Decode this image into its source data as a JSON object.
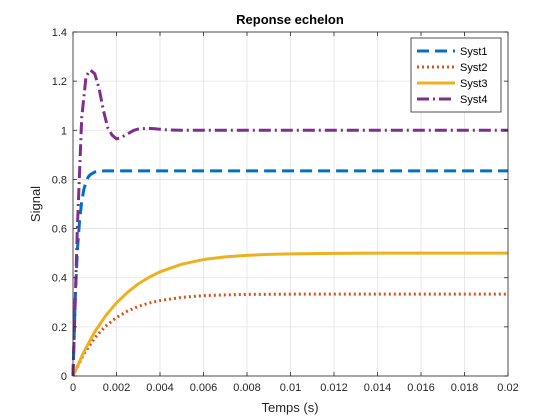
{
  "chart_data": {
    "type": "line",
    "title": "Reponse echelon",
    "xlabel": "Temps (s)",
    "ylabel": "Signal",
    "xlim": [
      0,
      0.02
    ],
    "ylim": [
      0,
      1.4
    ],
    "xticks": [
      0,
      0.002,
      0.004,
      0.006,
      0.008,
      0.01,
      0.012,
      0.014,
      0.016,
      0.018,
      0.02
    ],
    "xtick_labels": [
      "0",
      "0.002",
      "0.004",
      "0.006",
      "0.008",
      "0.01",
      "0.012",
      "0.014",
      "0.016",
      "0.018",
      "0.02"
    ],
    "yticks": [
      0,
      0.2,
      0.4,
      0.6,
      0.8,
      1,
      1.2,
      1.4
    ],
    "ytick_labels": [
      "0",
      "0.2",
      "0.4",
      "0.6",
      "0.8",
      "1",
      "1.2",
      "1.4"
    ],
    "grid": true,
    "legend_position": "top-right",
    "series": [
      {
        "name": "Syst1",
        "color": "#0072BD",
        "style": "dashed",
        "x": [
          0,
          0.0001,
          0.0002,
          0.0003,
          0.0004,
          0.0005,
          0.0006,
          0.0007,
          0.0008,
          0.001,
          0.0012,
          0.0015,
          0.002,
          0.003,
          0.005,
          0.01,
          0.015,
          0.02
        ],
        "y": [
          0,
          0.31,
          0.51,
          0.63,
          0.71,
          0.76,
          0.79,
          0.81,
          0.82,
          0.83,
          0.834,
          0.835,
          0.835,
          0.835,
          0.835,
          0.835,
          0.835,
          0.835
        ]
      },
      {
        "name": "Syst2",
        "color": "#D95319",
        "style": "dotted",
        "x": [
          0,
          0.0005,
          0.001,
          0.0015,
          0.002,
          0.0025,
          0.003,
          0.0035,
          0.004,
          0.005,
          0.006,
          0.007,
          0.008,
          0.01,
          0.012,
          0.015,
          0.02
        ],
        "y": [
          0,
          0.09,
          0.155,
          0.203,
          0.238,
          0.264,
          0.283,
          0.297,
          0.307,
          0.32,
          0.327,
          0.33,
          0.332,
          0.333,
          0.333,
          0.333,
          0.333
        ]
      },
      {
        "name": "Syst3",
        "color": "#EDB120",
        "style": "solid",
        "x": [
          0,
          0.0005,
          0.001,
          0.0015,
          0.002,
          0.0025,
          0.003,
          0.0035,
          0.004,
          0.005,
          0.006,
          0.007,
          0.008,
          0.009,
          0.01,
          0.012,
          0.014,
          0.016,
          0.02
        ],
        "y": [
          0,
          0.098,
          0.18,
          0.245,
          0.298,
          0.34,
          0.375,
          0.402,
          0.424,
          0.455,
          0.474,
          0.485,
          0.491,
          0.495,
          0.497,
          0.499,
          0.5,
          0.5,
          0.5
        ]
      },
      {
        "name": "Syst4",
        "color": "#7E2F8E",
        "style": "dashdot",
        "x": [
          0,
          0.0002,
          0.0004,
          0.0006,
          0.0008,
          0.001,
          0.0012,
          0.0014,
          0.0016,
          0.0018,
          0.002,
          0.0022,
          0.0025,
          0.0028,
          0.003,
          0.0034,
          0.0038,
          0.0042,
          0.005,
          0.006,
          0.008,
          0.01,
          0.02
        ],
        "y": [
          0,
          0.6,
          1.05,
          1.22,
          1.245,
          1.23,
          1.17,
          1.08,
          1.01,
          0.98,
          0.965,
          0.97,
          0.985,
          1.0,
          1.005,
          1.008,
          1.006,
          1.002,
          1.0,
          1.0,
          1.0,
          1.0,
          1.0
        ]
      }
    ]
  }
}
